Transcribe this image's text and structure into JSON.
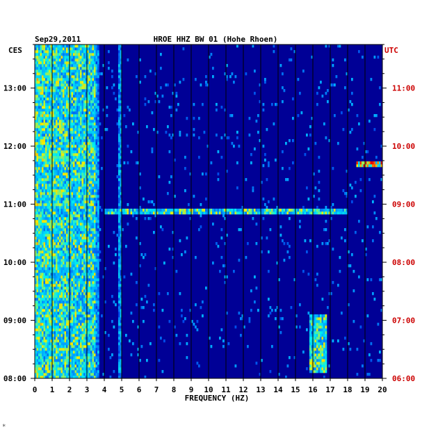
{
  "chart_data": {
    "type": "heatmap",
    "title": "HROE HHZ BW 01 (Hohe Rhoen)",
    "date": "Sep29,2011",
    "xlabel": "FREQUENCY (HZ)",
    "left_axis_label": "CES",
    "right_axis_label": "UTC",
    "x_range": [
      0,
      20
    ],
    "x_ticks": [
      "0",
      "1",
      "2",
      "3",
      "4",
      "5",
      "6",
      "7",
      "8",
      "9",
      "10",
      "11",
      "12",
      "13",
      "14",
      "15",
      "16",
      "17",
      "18",
      "19",
      "20"
    ],
    "left_ticks": [
      "08:00",
      "09:00",
      "10:00",
      "11:00",
      "12:00",
      "13:00"
    ],
    "right_ticks": [
      "06:00",
      "07:00",
      "08:00",
      "09:00",
      "10:00",
      "11:00"
    ],
    "time_range_local": [
      "08:00",
      "13:45"
    ],
    "footer_mark": "*",
    "colors": {
      "background": "#000096",
      "grid": "#000000",
      "utc": "#cc0000",
      "text": "#000000"
    },
    "features": [
      {
        "name": "low-frequency noise",
        "freq_range": [
          0,
          3.5
        ],
        "intensity": "high"
      },
      {
        "name": "line near 3.6 Hz",
        "freq": 3.6,
        "intensity": "medium"
      },
      {
        "name": "line near 4.9 Hz",
        "freq": 4.9,
        "intensity": "medium"
      },
      {
        "name": "broadband event",
        "local_time": "10:52",
        "freq_range": [
          4,
          18
        ],
        "intensity": "high"
      },
      {
        "name": "high-frequency event",
        "local_time": "11:41",
        "freq_range": [
          18.5,
          20
        ],
        "intensity": "very high"
      },
      {
        "name": "16-17 Hz signal",
        "local_time_range": [
          "08:05",
          "09:05"
        ],
        "freq_range": [
          15.8,
          16.8
        ],
        "intensity": "high"
      }
    ]
  }
}
